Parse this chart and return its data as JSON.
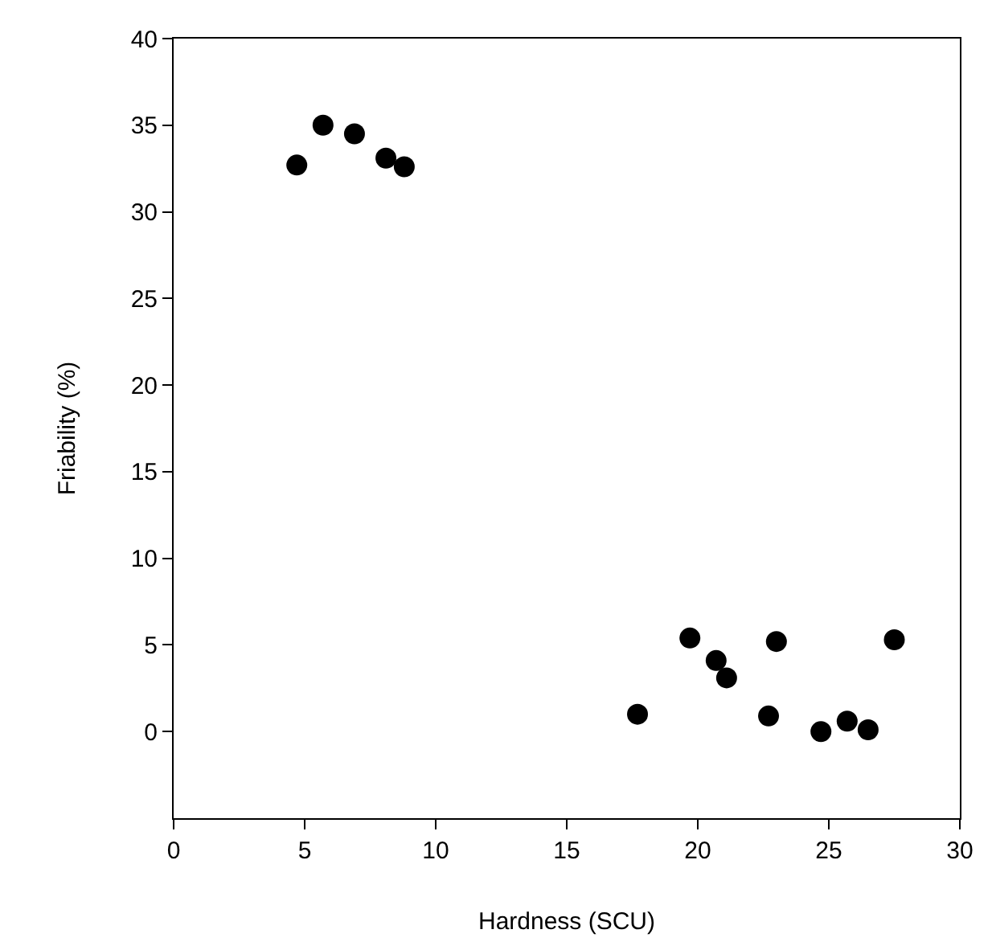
{
  "chart_data": {
    "type": "scatter",
    "xlabel": "Hardness (SCU)",
    "ylabel": "Friability (%)",
    "x": [
      4.7,
      5.7,
      6.9,
      8.1,
      8.8,
      17.7,
      19.7,
      20.7,
      21.1,
      22.7,
      23.0,
      24.7,
      25.7,
      26.5,
      27.5
    ],
    "values": [
      32.7,
      35.0,
      34.5,
      33.1,
      32.6,
      1.0,
      5.4,
      4.1,
      3.1,
      0.9,
      5.2,
      0.0,
      0.6,
      0.1,
      5.3
    ],
    "color": "#000000",
    "marker": "circle",
    "grid": false,
    "legend": false,
    "xlim": [
      0,
      30
    ],
    "xticks": [
      0,
      5,
      10,
      15,
      20,
      25,
      30
    ],
    "ylim": [
      -5,
      40
    ],
    "yticks": [
      0,
      5,
      10,
      15,
      20,
      25,
      30,
      35,
      40
    ]
  }
}
